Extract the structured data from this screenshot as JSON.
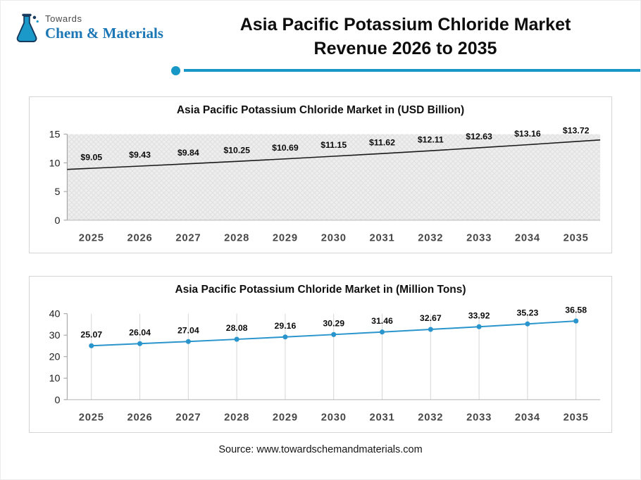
{
  "brand": {
    "top": "Towards",
    "name": "Chem & Materials"
  },
  "header": {
    "title_line1": "Asia Pacific Potassium Chloride Market",
    "title_line2": "Revenue 2026 to 2035"
  },
  "colors": {
    "accent": "#1697c5",
    "brand_blue": "#1a76b4",
    "chart1_line": "#1a1a1a",
    "chart2_line": "#2a95cc",
    "grid": "#d6d6d6"
  },
  "footer": {
    "source": "Source: www.towardschemandmaterials.com"
  },
  "chart_data": [
    {
      "type": "line",
      "title": "Asia Pacific Potassium Chloride Market in (USD Billion)",
      "categories": [
        "2025",
        "2026",
        "2027",
        "2028",
        "2029",
        "2030",
        "2031",
        "2032",
        "2033",
        "2034",
        "2035"
      ],
      "values": [
        9.05,
        9.43,
        9.84,
        10.25,
        10.69,
        11.15,
        11.62,
        12.11,
        12.63,
        13.16,
        13.72
      ],
      "labels": [
        "$9.05",
        "$9.43",
        "$9.84",
        "$10.25",
        "$10.69",
        "$11.15",
        "$11.62",
        "$12.11",
        "$12.63",
        "$13.16",
        "$13.72"
      ],
      "xlabel": "",
      "ylabel": "",
      "ylim": [
        0,
        15
      ],
      "yticks": [
        0,
        5,
        10,
        15
      ],
      "grid": false,
      "hatched_background": true,
      "legend": "none",
      "line_color": "#1a1a1a",
      "markers": false,
      "extend_line_to_edges": true
    },
    {
      "type": "line",
      "title": "Asia Pacific Potassium Chloride Market in (Million Tons)",
      "categories": [
        "2025",
        "2026",
        "2027",
        "2028",
        "2029",
        "2030",
        "2031",
        "2032",
        "2033",
        "2034",
        "2035"
      ],
      "values": [
        25.07,
        26.04,
        27.04,
        28.08,
        29.16,
        30.29,
        31.46,
        32.67,
        33.92,
        35.23,
        36.58
      ],
      "labels": [
        "25.07",
        "26.04",
        "27.04",
        "28.08",
        "29.16",
        "30.29",
        "31.46",
        "32.67",
        "33.92",
        "35.23",
        "36.58"
      ],
      "xlabel": "",
      "ylabel": "",
      "ylim": [
        0,
        40
      ],
      "yticks": [
        0,
        10,
        20,
        30,
        40
      ],
      "grid": true,
      "grid_color": "#d6d6d6",
      "hatched_background": false,
      "legend": "none",
      "line_color": "#2a95cc",
      "markers": true,
      "extend_line_to_edges": false
    }
  ]
}
